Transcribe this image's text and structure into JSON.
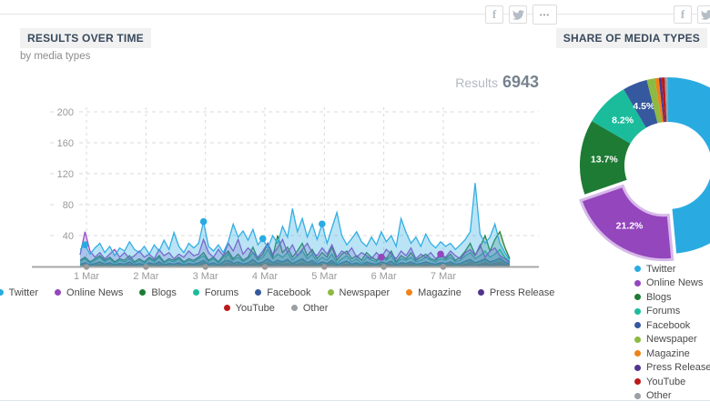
{
  "header": {
    "left_title": "RESULTS OVER TIME",
    "left_subtitle": "by media types",
    "right_title": "SHARE OF MEDIA TYPES",
    "results_label": "Results",
    "results_value": "6943"
  },
  "icons": {
    "facebook": "f",
    "more": "•••"
  },
  "colors": {
    "grid": "#d9d9d9",
    "axis": "#a8a8a8",
    "tick_dot": "#9c9c9c",
    "tick_label": "#999999",
    "donut_explode_ring": "#d7b9e9"
  },
  "chart_data": [
    {
      "type": "area",
      "title": "Results over time by media types",
      "x_tick_labels": [
        "1 Mar",
        "2 Mar",
        "3 Mar",
        "4 Mar",
        "5 Mar",
        "6 Mar",
        "7 Mar"
      ],
      "y_ticks": [
        40,
        80,
        120,
        160,
        200
      ],
      "ylim": [
        0,
        220
      ],
      "grid": true,
      "legend_position": "bottom",
      "markers": [
        {
          "series_index": 0,
          "index": 1
        },
        {
          "series_index": 0,
          "index": 25
        },
        {
          "series_index": 0,
          "index": 37
        },
        {
          "series_index": 0,
          "index": 49
        },
        {
          "series_index": 1,
          "index": 61
        },
        {
          "series_index": 1,
          "index": 73
        }
      ],
      "series": [
        {
          "name": "Twitter",
          "color": "#29abe2",
          "values": [
            22,
            28,
            16,
            24,
            30,
            18,
            26,
            14,
            24,
            20,
            32,
            22,
            18,
            26,
            16,
            28,
            20,
            34,
            22,
            44,
            26,
            18,
            30,
            24,
            30,
            58,
            26,
            20,
            28,
            18,
            32,
            55,
            38,
            46,
            34,
            48,
            28,
            36,
            24,
            40,
            30,
            52,
            38,
            75,
            45,
            62,
            38,
            55,
            35,
            55,
            30,
            50,
            70,
            40,
            28,
            36,
            45,
            32,
            26,
            38,
            28,
            45,
            32,
            40,
            26,
            62,
            44,
            30,
            38,
            26,
            42,
            30,
            24,
            32,
            26,
            30,
            22,
            28,
            35,
            45,
            108,
            42,
            30,
            38,
            55,
            30,
            18,
            8
          ]
        },
        {
          "name": "Online News",
          "color": "#9446bd",
          "values": [
            15,
            45,
            20,
            12,
            18,
            10,
            16,
            22,
            12,
            18,
            10,
            14,
            20,
            12,
            16,
            10,
            22,
            14,
            18,
            10,
            16,
            12,
            20,
            14,
            16,
            35,
            18,
            12,
            22,
            14,
            30,
            20,
            35,
            16,
            24,
            18,
            12,
            20,
            30,
            16,
            24,
            35,
            18,
            28,
            14,
            22,
            30,
            18,
            14,
            24,
            16,
            28,
            12,
            20,
            16,
            24,
            12,
            18,
            14,
            10,
            18,
            12,
            22,
            16,
            10,
            20,
            14,
            24,
            10,
            16,
            12,
            18,
            10,
            16,
            12,
            20,
            14,
            10,
            18,
            22,
            14,
            28,
            12,
            20,
            24,
            14,
            10,
            5
          ]
        },
        {
          "name": "Blogs",
          "color": "#1e7b34",
          "values": [
            8,
            12,
            6,
            10,
            14,
            8,
            12,
            6,
            10,
            8,
            14,
            6,
            10,
            6,
            12,
            8,
            14,
            6,
            10,
            8,
            12,
            6,
            10,
            8,
            12,
            18,
            8,
            12,
            6,
            14,
            20,
            10,
            16,
            8,
            12,
            25,
            10,
            16,
            30,
            12,
            40,
            18,
            25,
            12,
            20,
            30,
            14,
            22,
            10,
            18,
            12,
            25,
            8,
            16,
            20,
            10,
            14,
            8,
            18,
            12,
            8,
            16,
            10,
            20,
            6,
            14,
            10,
            18,
            8,
            12,
            16,
            10,
            8,
            14,
            10,
            16,
            8,
            12,
            20,
            30,
            15,
            25,
            40,
            20,
            35,
            45,
            25,
            10
          ]
        },
        {
          "name": "Forums",
          "color": "#1abc9c",
          "values": [
            6,
            10,
            4,
            8,
            12,
            6,
            10,
            4,
            8,
            6,
            10,
            4,
            8,
            4,
            10,
            6,
            12,
            4,
            8,
            6,
            10,
            4,
            8,
            6,
            10,
            14,
            6,
            10,
            4,
            12,
            16,
            8,
            12,
            6,
            10,
            18,
            8,
            12,
            22,
            10,
            16,
            12,
            18,
            8,
            14,
            20,
            10,
            16,
            6,
            12,
            8,
            16,
            4,
            10,
            14,
            6,
            10,
            4,
            12,
            8,
            6,
            12,
            8,
            14,
            4,
            10,
            8,
            12,
            6,
            8,
            12,
            8,
            6,
            10,
            8,
            12,
            6,
            8,
            14,
            18,
            10,
            14,
            20,
            12,
            16,
            22,
            12,
            6
          ]
        },
        {
          "name": "Facebook",
          "color": "#35589e",
          "values": [
            3,
            5,
            2,
            4,
            6,
            3,
            5,
            2,
            4,
            3,
            6,
            2,
            4,
            2,
            5,
            3,
            6,
            2,
            4,
            3,
            5,
            2,
            4,
            3,
            5,
            8,
            3,
            5,
            2,
            6,
            8,
            4,
            6,
            3,
            5,
            9,
            4,
            6,
            10,
            5,
            8,
            6,
            9,
            4,
            7,
            10,
            5,
            8,
            3,
            6,
            4,
            8,
            2,
            5,
            7,
            3,
            5,
            2,
            6,
            4,
            3,
            6,
            4,
            7,
            2,
            5,
            4,
            6,
            3,
            4,
            6,
            4,
            3,
            5,
            4,
            6,
            3,
            4,
            7,
            9,
            5,
            7,
            10,
            6,
            8,
            11,
            6,
            3
          ]
        },
        {
          "name": "Newspaper",
          "color": "#8cba42",
          "values": [
            2,
            4,
            1,
            3,
            5,
            2,
            4,
            1,
            3,
            2,
            5,
            1,
            3,
            1,
            4,
            2,
            5,
            1,
            3,
            2,
            4,
            1,
            3,
            2,
            4,
            6,
            2,
            4,
            1,
            5,
            18,
            3,
            5,
            2,
            4,
            7,
            3,
            5,
            8,
            4,
            6,
            5,
            7,
            3,
            6,
            8,
            4,
            6,
            2,
            5,
            3,
            6,
            1,
            4,
            6,
            2,
            4,
            1,
            5,
            3,
            2,
            5,
            3,
            6,
            1,
            4,
            3,
            5,
            2,
            3,
            5,
            3,
            2,
            4,
            3,
            5,
            2,
            3,
            6,
            7,
            4,
            6,
            8,
            5,
            6,
            9,
            5,
            2
          ]
        },
        {
          "name": "Magazine",
          "color": "#ef8318",
          "values": [
            1,
            2,
            1,
            1,
            3,
            1,
            2,
            1,
            1,
            2,
            3,
            1,
            2,
            1,
            2,
            1,
            3,
            1,
            2,
            1,
            2,
            1,
            2,
            1,
            2,
            3,
            1,
            2,
            1,
            3,
            4,
            2,
            3,
            1,
            2,
            4,
            2,
            3,
            4,
            2,
            3,
            3,
            4,
            2,
            3,
            4,
            2,
            3,
            1,
            3,
            2,
            3,
            1,
            2,
            3,
            1,
            2,
            1,
            3,
            2,
            1,
            3,
            2,
            3,
            1,
            2,
            2,
            3,
            1,
            2,
            3,
            2,
            1,
            2,
            2,
            3,
            1,
            2,
            3,
            4,
            2,
            3,
            4,
            3,
            3,
            5,
            3,
            1
          ]
        },
        {
          "name": "Press Release",
          "color": "#52348f",
          "values": [
            1,
            3,
            1,
            2,
            2,
            1,
            3,
            1,
            2,
            1,
            2,
            1,
            2,
            1,
            3,
            1,
            2,
            1,
            2,
            1,
            3,
            1,
            2,
            1,
            2,
            4,
            1,
            2,
            1,
            2,
            5,
            2,
            3,
            1,
            2,
            3,
            2,
            3,
            5,
            2,
            4,
            3,
            4,
            2,
            3,
            5,
            2,
            4,
            1,
            3,
            2,
            4,
            1,
            2,
            3,
            1,
            3,
            1,
            3,
            2,
            1,
            3,
            2,
            3,
            1,
            2,
            2,
            3,
            1,
            2,
            3,
            2,
            1,
            3,
            2,
            3,
            1,
            2,
            3,
            5,
            2,
            3,
            5,
            3,
            4,
            6,
            3,
            1
          ]
        },
        {
          "name": "YouTube",
          "color": "#bb1919",
          "values": [
            1,
            2,
            1,
            1,
            2,
            1,
            1,
            1,
            2,
            1,
            2,
            1,
            1,
            1,
            2,
            1,
            2,
            1,
            1,
            1,
            2,
            1,
            1,
            1,
            2,
            3,
            1,
            1,
            1,
            2,
            3,
            1,
            2,
            1,
            1,
            3,
            1,
            2,
            3,
            1,
            3,
            2,
            3,
            1,
            2,
            3,
            1,
            2,
            1,
            2,
            1,
            3,
            1,
            1,
            2,
            1,
            2,
            1,
            2,
            1,
            1,
            2,
            1,
            2,
            1,
            1,
            2,
            2,
            1,
            1,
            2,
            1,
            1,
            2,
            1,
            2,
            1,
            1,
            2,
            3,
            2,
            2,
            3,
            2,
            2,
            3,
            2,
            1
          ]
        },
        {
          "name": "Other",
          "color": "#9aa0a6",
          "values": [
            2,
            3,
            1,
            2,
            3,
            1,
            2,
            1,
            3,
            2,
            3,
            1,
            2,
            1,
            3,
            2,
            3,
            1,
            2,
            2,
            3,
            1,
            2,
            2,
            3,
            4,
            2,
            2,
            1,
            3,
            4,
            2,
            3,
            1,
            2,
            4,
            2,
            3,
            5,
            2,
            4,
            3,
            4,
            2,
            3,
            4,
            2,
            3,
            1,
            3,
            2,
            4,
            1,
            2,
            3,
            1,
            3,
            1,
            3,
            2,
            2,
            3,
            2,
            3,
            1,
            2,
            3,
            3,
            1,
            2,
            3,
            2,
            2,
            3,
            2,
            3,
            1,
            2,
            3,
            4,
            2,
            3,
            4,
            3,
            3,
            5,
            3,
            1
          ]
        }
      ]
    },
    {
      "type": "donut",
      "title": "Share of media types",
      "legend_position": "right",
      "segments": [
        {
          "name": "Twitter",
          "color": "#29abe2",
          "value": 48.5,
          "label": "",
          "exploded": false
        },
        {
          "name": "Online News",
          "color": "#9446bd",
          "value": 21.2,
          "label": "21.2%",
          "exploded": true
        },
        {
          "name": "Blogs",
          "color": "#1e7b34",
          "value": 13.7,
          "label": "13.7%",
          "exploded": false
        },
        {
          "name": "Forums",
          "color": "#1abc9c",
          "value": 8.2,
          "label": "8.2%",
          "exploded": false
        },
        {
          "name": "Facebook",
          "color": "#35589e",
          "value": 4.5,
          "label": "4.5%",
          "exploded": false
        },
        {
          "name": "Newspaper",
          "color": "#8cba42",
          "value": 1.5,
          "label": "",
          "exploded": false
        },
        {
          "name": "Magazine",
          "color": "#ef8318",
          "value": 0.7,
          "label": "",
          "exploded": false
        },
        {
          "name": "Press Release",
          "color": "#52348f",
          "value": 0.5,
          "label": "",
          "exploded": false
        },
        {
          "name": "YouTube",
          "color": "#bb1919",
          "value": 0.6,
          "label": "",
          "exploded": false
        },
        {
          "name": "Other",
          "color": "#9aa0a6",
          "value": 0.6,
          "label": "",
          "exploded": false
        }
      ]
    }
  ]
}
